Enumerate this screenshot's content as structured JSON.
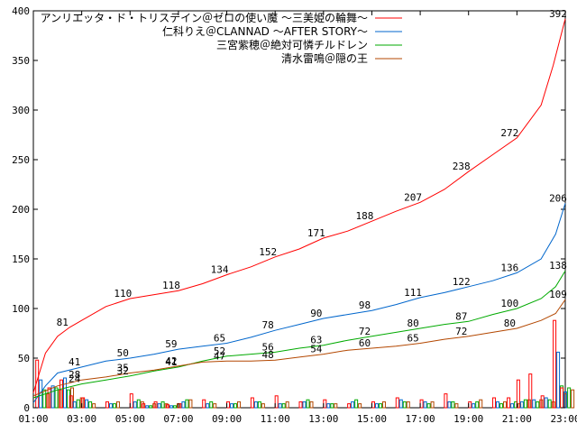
{
  "chart_data": {
    "type": "line",
    "xlim": [
      1,
      23
    ],
    "ylim": [
      0,
      400
    ],
    "yticks": [
      0,
      50,
      100,
      150,
      200,
      250,
      300,
      350,
      400
    ],
    "xticks": [
      "01:00",
      "03:00",
      "05:00",
      "07:00",
      "09:00",
      "11:00",
      "13:00",
      "15:00",
      "17:00",
      "19:00",
      "21:00",
      "23:00"
    ],
    "legend_position": "top-right",
    "grid": false,
    "series": [
      {
        "name": "アンリエッタ・ド・トリステイン＠ゼロの使い魔 〜三美姫の輪舞〜",
        "color": "#ff0000",
        "points": [
          [
            1,
            15
          ],
          [
            1.5,
            55
          ],
          [
            2,
            72
          ],
          [
            2.5,
            81
          ],
          [
            3,
            88
          ],
          [
            4,
            102
          ],
          [
            5,
            110
          ],
          [
            6,
            114
          ],
          [
            7,
            118
          ],
          [
            8,
            125
          ],
          [
            9,
            134
          ],
          [
            10,
            142
          ],
          [
            11,
            152
          ],
          [
            12,
            160
          ],
          [
            13,
            171
          ],
          [
            14,
            178
          ],
          [
            15,
            188
          ],
          [
            16,
            198
          ],
          [
            17,
            207
          ],
          [
            18,
            220
          ],
          [
            19,
            238
          ],
          [
            20,
            255
          ],
          [
            21,
            272
          ],
          [
            22,
            305
          ],
          [
            22.5,
            345
          ],
          [
            23,
            392
          ]
        ],
        "labels": [
          {
            "x": 2.5,
            "y": 81,
            "text": "81"
          },
          {
            "x": 5,
            "y": 110,
            "text": "110"
          },
          {
            "x": 7,
            "y": 118,
            "text": "118"
          },
          {
            "x": 9,
            "y": 134,
            "text": "134"
          },
          {
            "x": 11,
            "y": 152,
            "text": "152"
          },
          {
            "x": 13,
            "y": 171,
            "text": "171"
          },
          {
            "x": 15,
            "y": 188,
            "text": "188"
          },
          {
            "x": 17,
            "y": 207,
            "text": "207"
          },
          {
            "x": 19,
            "y": 238,
            "text": "238"
          },
          {
            "x": 21,
            "y": 272,
            "text": "272"
          },
          {
            "x": 23,
            "y": 392,
            "text": "392"
          }
        ]
      },
      {
        "name": "仁科りえ＠CLANNAD 〜AFTER STORY〜",
        "color": "#0066cc",
        "points": [
          [
            1,
            5
          ],
          [
            1.5,
            22
          ],
          [
            2,
            35
          ],
          [
            3,
            41
          ],
          [
            4,
            47
          ],
          [
            5,
            50
          ],
          [
            6,
            54
          ],
          [
            7,
            59
          ],
          [
            8,
            62
          ],
          [
            9,
            65
          ],
          [
            10,
            71
          ],
          [
            11,
            78
          ],
          [
            12,
            84
          ],
          [
            13,
            90
          ],
          [
            14,
            94
          ],
          [
            15,
            98
          ],
          [
            16,
            104
          ],
          [
            17,
            111
          ],
          [
            18,
            116
          ],
          [
            19,
            122
          ],
          [
            20,
            128
          ],
          [
            21,
            136
          ],
          [
            22,
            150
          ],
          [
            22.6,
            175
          ],
          [
            23,
            206
          ]
        ],
        "labels": [
          {
            "x": 3,
            "y": 41,
            "text": "41"
          },
          {
            "x": 5,
            "y": 50,
            "text": "50"
          },
          {
            "x": 7,
            "y": 59,
            "text": "59"
          },
          {
            "x": 9,
            "y": 65,
            "text": "65"
          },
          {
            "x": 11,
            "y": 78,
            "text": "78"
          },
          {
            "x": 13,
            "y": 90,
            "text": "90"
          },
          {
            "x": 15,
            "y": 98,
            "text": "98"
          },
          {
            "x": 17,
            "y": 111,
            "text": "111"
          },
          {
            "x": 19,
            "y": 122,
            "text": "122"
          },
          {
            "x": 21,
            "y": 136,
            "text": "136"
          },
          {
            "x": 23,
            "y": 206,
            "text": "206"
          }
        ]
      },
      {
        "name": "三宮紫穂＠絶対可憐チルドレン",
        "color": "#00aa00",
        "points": [
          [
            1,
            10
          ],
          [
            2,
            18
          ],
          [
            3,
            24
          ],
          [
            4,
            28
          ],
          [
            5,
            32
          ],
          [
            6,
            37
          ],
          [
            7,
            41
          ],
          [
            8,
            47
          ],
          [
            9,
            52
          ],
          [
            10,
            54
          ],
          [
            11,
            56
          ],
          [
            12,
            60
          ],
          [
            13,
            63
          ],
          [
            14,
            68
          ],
          [
            15,
            72
          ],
          [
            16,
            76
          ],
          [
            17,
            80
          ],
          [
            18,
            84
          ],
          [
            19,
            87
          ],
          [
            20,
            94
          ],
          [
            21,
            100
          ],
          [
            22,
            110
          ],
          [
            22.6,
            122
          ],
          [
            23,
            138
          ]
        ],
        "labels": [
          {
            "x": 3,
            "y": 24,
            "text": "24"
          },
          {
            "x": 5,
            "y": 32,
            "text": "32"
          },
          {
            "x": 7,
            "y": 41,
            "text": "41"
          },
          {
            "x": 9,
            "y": 52,
            "text": "52"
          },
          {
            "x": 11,
            "y": 56,
            "text": "56"
          },
          {
            "x": 13,
            "y": 63,
            "text": "63"
          },
          {
            "x": 15,
            "y": 72,
            "text": "72"
          },
          {
            "x": 17,
            "y": 80,
            "text": "80"
          },
          {
            "x": 19,
            "y": 87,
            "text": "87"
          },
          {
            "x": 21,
            "y": 100,
            "text": "100"
          },
          {
            "x": 23,
            "y": 138,
            "text": "138"
          }
        ]
      },
      {
        "name": "清水雷鳴＠隠の王",
        "color": "#b34700",
        "points": [
          [
            1,
            12
          ],
          [
            2,
            22
          ],
          [
            3,
            28
          ],
          [
            4,
            31
          ],
          [
            5,
            35
          ],
          [
            6,
            38
          ],
          [
            7,
            42
          ],
          [
            8,
            46
          ],
          [
            9,
            47
          ],
          [
            10,
            47
          ],
          [
            11,
            48
          ],
          [
            12,
            51
          ],
          [
            13,
            54
          ],
          [
            14,
            58
          ],
          [
            15,
            60
          ],
          [
            16,
            62
          ],
          [
            17,
            65
          ],
          [
            18,
            69
          ],
          [
            19,
            72
          ],
          [
            20,
            76
          ],
          [
            21,
            80
          ],
          [
            22,
            88
          ],
          [
            22.6,
            95
          ],
          [
            23,
            109
          ]
        ],
        "labels": [
          {
            "x": 3,
            "y": 28,
            "text": "28"
          },
          {
            "x": 5,
            "y": 35,
            "text": "35"
          },
          {
            "x": 7,
            "y": 42,
            "text": "42"
          },
          {
            "x": 9,
            "y": 47,
            "text": "47"
          },
          {
            "x": 11,
            "y": 48,
            "text": "48"
          },
          {
            "x": 13,
            "y": 54,
            "text": "54"
          },
          {
            "x": 15,
            "y": 60,
            "text": "60"
          },
          {
            "x": 17,
            "y": 65,
            "text": "65"
          },
          {
            "x": 19,
            "y": 72,
            "text": "72"
          },
          {
            "x": 21,
            "y": 80,
            "text": "80"
          },
          {
            "x": 23,
            "y": 109,
            "text": "109"
          }
        ]
      }
    ],
    "bars": {
      "description_series_order": [
        0,
        1,
        2,
        3
      ],
      "x": [
        1.1,
        1.6,
        2.1,
        2.5,
        3.0,
        4.0,
        5.0,
        5.5,
        6.0,
        6.5,
        7.0,
        8.0,
        9.0,
        10.0,
        11.0,
        12.0,
        13.0,
        14.0,
        15.0,
        16.0,
        17.0,
        18.0,
        19.0,
        20.0,
        20.6,
        21.0,
        21.5,
        22.0,
        22.5,
        22.8
      ],
      "values": [
        [
          48,
          20,
          28,
          12,
          10,
          6,
          14,
          4,
          6,
          3,
          4,
          8,
          6,
          10,
          12,
          6,
          8,
          4,
          6,
          10,
          8,
          14,
          6,
          10,
          10,
          28,
          34,
          12,
          88,
          20
        ],
        [
          28,
          22,
          30,
          6,
          8,
          4,
          6,
          2,
          4,
          2,
          6,
          4,
          4,
          6,
          4,
          6,
          4,
          6,
          4,
          8,
          6,
          6,
          4,
          6,
          4,
          6,
          8,
          10,
          56,
          16
        ],
        [
          18,
          20,
          18,
          8,
          6,
          4,
          8,
          2,
          6,
          2,
          8,
          6,
          4,
          6,
          4,
          8,
          4,
          8,
          4,
          6,
          4,
          6,
          6,
          4,
          6,
          8,
          6,
          8,
          22,
          20
        ],
        [
          14,
          18,
          20,
          10,
          4,
          6,
          6,
          4,
          4,
          4,
          8,
          4,
          6,
          4,
          6,
          6,
          4,
          4,
          6,
          6,
          6,
          4,
          8,
          6,
          4,
          8,
          8,
          6,
          14,
          18
        ]
      ]
    }
  }
}
